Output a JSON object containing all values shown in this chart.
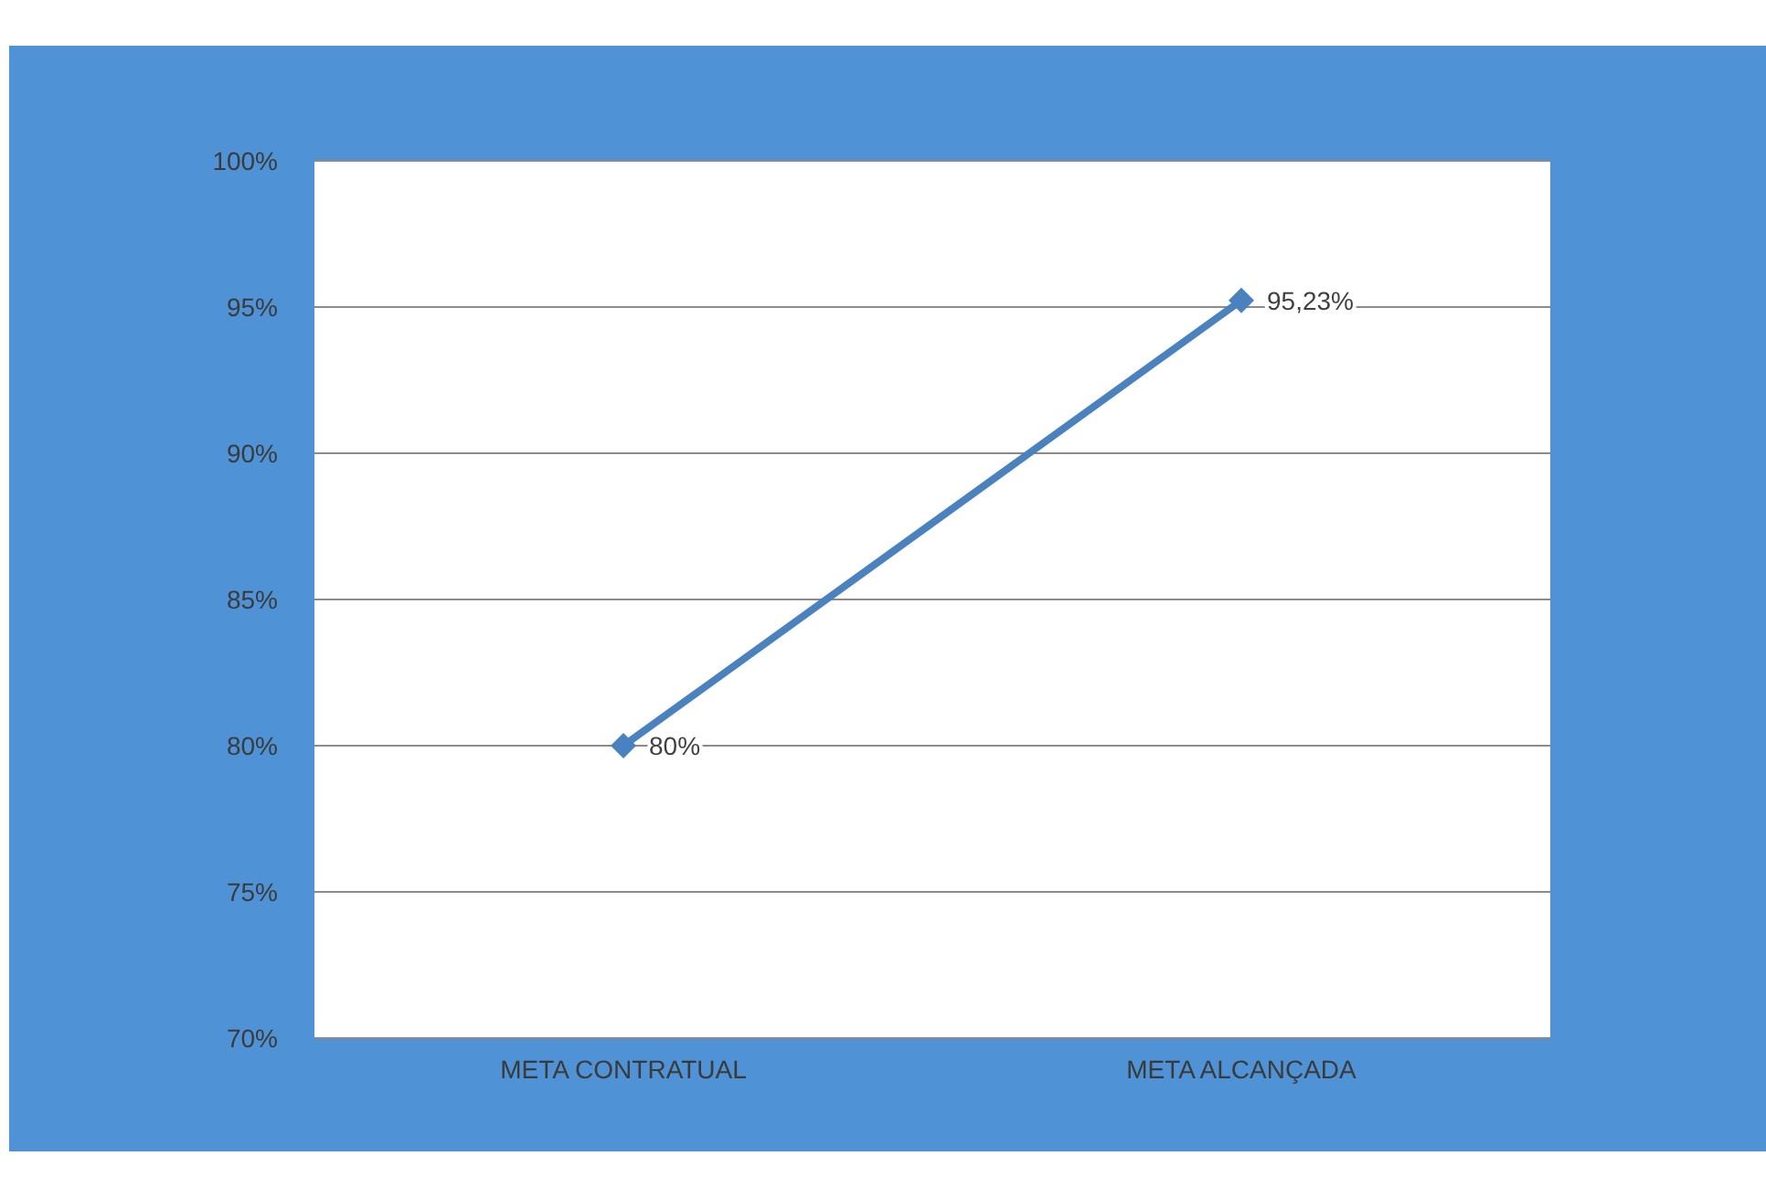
{
  "chart_data": {
    "type": "line",
    "categories": [
      "META CONTRATUAL",
      "META ALCANÇADA"
    ],
    "series": [
      {
        "color": "#4a82c0",
        "values": [
          80,
          95.23
        ],
        "value_labels": [
          "80%",
          "95,23%"
        ]
      }
    ],
    "ylim": [
      70,
      100
    ],
    "yticks": [
      {
        "value": 70,
        "label": "70%"
      },
      {
        "value": 75,
        "label": "75%"
      },
      {
        "value": 80,
        "label": "80%"
      },
      {
        "value": 85,
        "label": "85%"
      },
      {
        "value": 90,
        "label": "90%"
      },
      {
        "value": 95,
        "label": "95%"
      },
      {
        "value": 100,
        "label": "100%"
      }
    ],
    "grid": "y",
    "marker": "diamond",
    "line_style": "solid"
  }
}
